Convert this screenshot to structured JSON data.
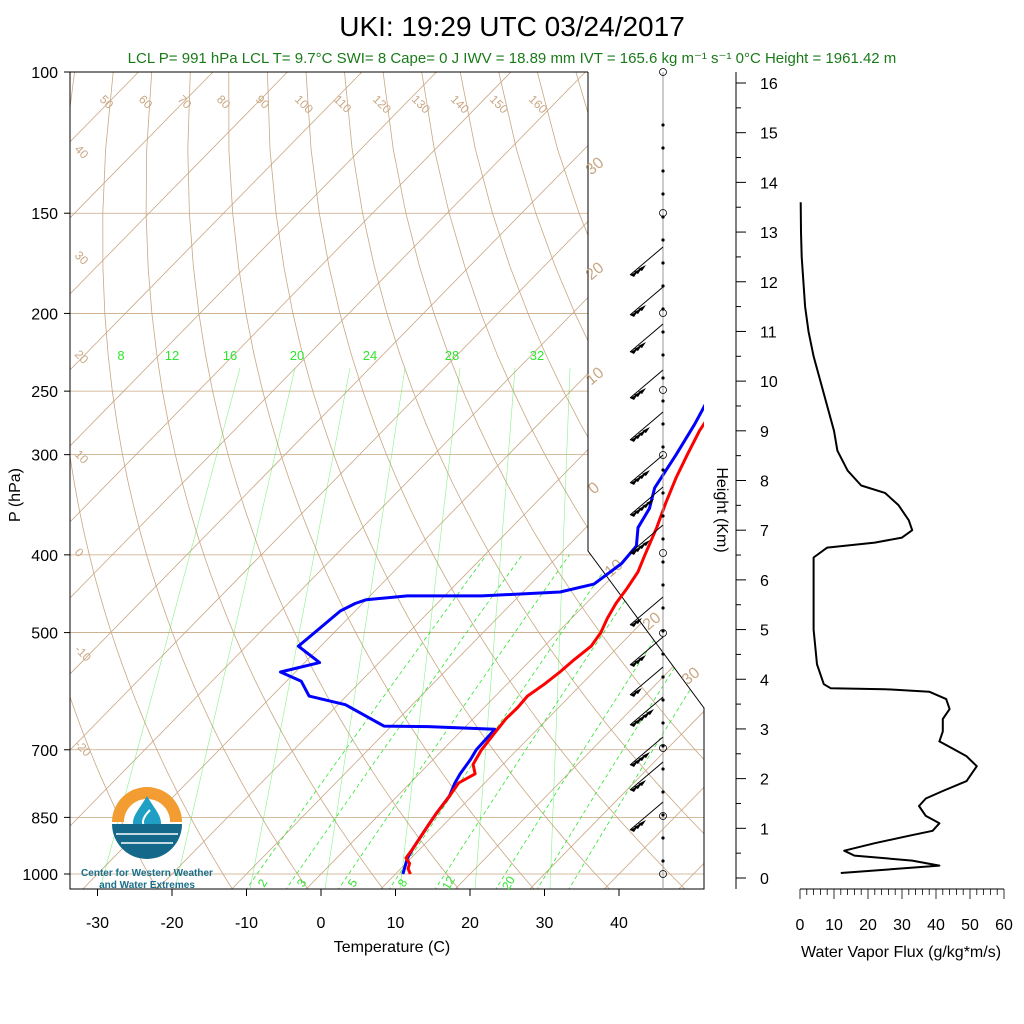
{
  "title": "UKI: 19:29 UTC 03/24/2017",
  "info_line": "LCL P= 991 hPa  LCL T= 9.7°C  SWI= 8  Cape= 0 J  IWV = 18.89 mm  IVT = 165.6 kg m⁻¹ s⁻¹  0°C Height = 1961.42 m",
  "logo": {
    "line1": "Center for Western Weather",
    "line2": "and Water Extremes",
    "colors": {
      "sun": "#f39c32",
      "drop": "#1f9fc4",
      "water": "#14688a"
    }
  },
  "colors": {
    "temperature": "#ff0000",
    "dewpoint": "#0000ff",
    "isotherm_adiabat": "#c8a783",
    "mixing_ratio": "#2ee52e",
    "info_text": "#1a7a1a"
  },
  "chart_data": [
    {
      "type": "line",
      "title": "UKI: 19:29 UTC 03/24/2017",
      "xlabel": "Temperature (C)",
      "ylabel": "P (hPa)",
      "y_scale": "log-pressure",
      "xlim": [
        -35,
        52
      ],
      "ylim": [
        1050,
        100
      ],
      "x_ticks": [
        "-30",
        "-20",
        "-10",
        "0",
        "10",
        "20",
        "30",
        "40"
      ],
      "y_ticks": [
        "100",
        "150",
        "200",
        "250",
        "300",
        "400",
        "500",
        "700",
        "850",
        "1000"
      ],
      "dry_adiabat_labels": [
        "50",
        "60",
        "70",
        "80",
        "90",
        "100",
        "110",
        "120",
        "130",
        "140",
        "150",
        "160",
        "40",
        "30",
        "20",
        "10",
        "0",
        "-10",
        "-20"
      ],
      "mixing_ratio_labels_top": [
        "8",
        "12",
        "16",
        "20",
        "24",
        "28",
        "32"
      ],
      "mixing_ratio_labels_bottom": [
        "2",
        "3",
        "5",
        "8",
        "12",
        "20"
      ],
      "wet_adiabat_labels": [
        "30",
        "20",
        "10",
        "0",
        "10",
        "20",
        "30"
      ],
      "series": [
        {
          "name": "Temperature",
          "points": [
            [
              12,
              1000
            ],
            [
              11,
              985
            ],
            [
              10.5,
              970
            ],
            [
              9.3,
              955
            ],
            [
              9,
              930
            ],
            [
              8.5,
              900
            ],
            [
              8,
              870
            ],
            [
              7.5,
              840
            ],
            [
              7,
              800
            ],
            [
              6.5,
              770
            ],
            [
              7.5,
              750
            ],
            [
              6,
              730
            ],
            [
              5.2,
              700
            ],
            [
              4.8,
              670
            ],
            [
              4.4,
              640
            ],
            [
              4.5,
              620
            ],
            [
              4.3,
              600
            ],
            [
              5,
              580
            ],
            [
              5.5,
              560
            ],
            [
              5.8,
              540
            ],
            [
              6.3,
              520
            ],
            [
              5.8,
              500
            ],
            [
              4.8,
              480
            ],
            [
              4,
              460
            ],
            [
              3.5,
              440
            ],
            [
              2.8,
              420
            ],
            [
              1.5,
              400
            ],
            [
              -0.5,
              370
            ],
            [
              -2.5,
              345
            ],
            [
              -4.5,
              320
            ],
            [
              -6,
              300
            ],
            [
              -7.5,
              280
            ],
            [
              -8.5,
              262
            ],
            [
              -9,
              250
            ],
            [
              -9.8,
              240
            ],
            [
              -10.5,
              230
            ],
            [
              -11.5,
              222
            ],
            [
              -12,
              210
            ],
            [
              -11.8,
              200
            ],
            [
              -11,
              190
            ],
            [
              -10.5,
              182
            ],
            [
              -9,
              178
            ],
            [
              -5,
              175
            ],
            [
              -3,
              168
            ],
            [
              0,
              163
            ],
            [
              4,
              158
            ],
            [
              5,
              155
            ],
            [
              8,
              150
            ]
          ]
        },
        {
          "name": "Dewpoint",
          "points": [
            [
              11,
              1000
            ],
            [
              10.5,
              985
            ],
            [
              10,
              970
            ],
            [
              9.5,
              955
            ],
            [
              9,
              930
            ],
            [
              8.5,
              900
            ],
            [
              8,
              870
            ],
            [
              7.5,
              840
            ],
            [
              7,
              800
            ],
            [
              6,
              770
            ],
            [
              5.5,
              750
            ],
            [
              5,
              720
            ],
            [
              4.5,
              700
            ],
            [
              4.3,
              660
            ],
            [
              -5,
              655
            ],
            [
              -11,
              654
            ],
            [
              -19,
              615
            ],
            [
              -25,
              600
            ],
            [
              -28,
              575
            ],
            [
              -32,
              560
            ],
            [
              -28,
              545
            ],
            [
              -33,
              520
            ],
            [
              -32,
              470
            ],
            [
              -31,
              460
            ],
            [
              -30,
              455
            ],
            [
              -25,
              450
            ],
            [
              -15,
              450
            ],
            [
              -5,
              445
            ],
            [
              -1.5,
              435
            ],
            [
              -0.5,
              410
            ],
            [
              -0.8,
              390
            ],
            [
              -3,
              370
            ],
            [
              -4,
              350
            ],
            [
              -6,
              330
            ],
            [
              -7.5,
              300
            ],
            [
              -9,
              275
            ],
            [
              -10,
              262
            ],
            [
              -11,
              250
            ],
            [
              -12,
              240
            ],
            [
              -13,
              232
            ],
            [
              -14,
              222
            ],
            [
              -17,
              213
            ],
            [
              -20,
              205
            ],
            [
              -20.5,
              195
            ],
            [
              -21,
              185
            ],
            [
              -22.5,
              178
            ],
            [
              -21.5,
              170
            ],
            [
              -23,
              160
            ],
            [
              -22,
              150
            ]
          ]
        }
      ]
    },
    {
      "type": "line",
      "xlabel": "Water Vapor Flux (g/kg*m/s)",
      "ylabel": "Height (Km)",
      "xlim": [
        0,
        60
      ],
      "ylim": [
        0,
        16.5
      ],
      "x_ticks": [
        "0",
        "10",
        "20",
        "30",
        "40",
        "50",
        "60"
      ],
      "y_ticks": [
        "0",
        "1",
        "2",
        "3",
        "4",
        "5",
        "6",
        "7",
        "8",
        "9",
        "10",
        "11",
        "12",
        "13",
        "14",
        "15",
        "16"
      ],
      "series": [
        {
          "name": "Water Vapor Flux",
          "points": [
            [
              12,
              0.1
            ],
            [
              22,
              0.15
            ],
            [
              41,
              0.25
            ],
            [
              33,
              0.35
            ],
            [
              16,
              0.45
            ],
            [
              13,
              0.55
            ],
            [
              22,
              0.7
            ],
            [
              32,
              0.85
            ],
            [
              39,
              0.95
            ],
            [
              41,
              1.1
            ],
            [
              37,
              1.25
            ],
            [
              35,
              1.45
            ],
            [
              37,
              1.6
            ],
            [
              42,
              1.75
            ],
            [
              49,
              1.95
            ],
            [
              50,
              2.05
            ],
            [
              52,
              2.25
            ],
            [
              49,
              2.45
            ],
            [
              45,
              2.6
            ],
            [
              41,
              2.75
            ],
            [
              42,
              2.95
            ],
            [
              42,
              3.2
            ],
            [
              44,
              3.4
            ],
            [
              43,
              3.6
            ],
            [
              38,
              3.75
            ],
            [
              25,
              3.8
            ],
            [
              9,
              3.82
            ],
            [
              7,
              3.9
            ],
            [
              5,
              4.3
            ],
            [
              4,
              5.0
            ],
            [
              4,
              5.7
            ],
            [
              4,
              6.2
            ],
            [
              4,
              6.45
            ],
            [
              8,
              6.65
            ],
            [
              22,
              6.75
            ],
            [
              30,
              6.85
            ],
            [
              33,
              7.0
            ],
            [
              32,
              7.2
            ],
            [
              29,
              7.5
            ],
            [
              25,
              7.75
            ],
            [
              18,
              7.9
            ],
            [
              14,
              8.2
            ],
            [
              11,
              8.6
            ],
            [
              10,
              9.0
            ],
            [
              8,
              9.5
            ],
            [
              6,
              10.0
            ],
            [
              4,
              10.5
            ],
            [
              2.5,
              11.0
            ],
            [
              1.5,
              11.5
            ],
            [
              1,
              12.0
            ],
            [
              0.5,
              12.5
            ],
            [
              0.3,
              13.0
            ],
            [
              0.2,
              13.6
            ]
          ]
        }
      ]
    }
  ]
}
